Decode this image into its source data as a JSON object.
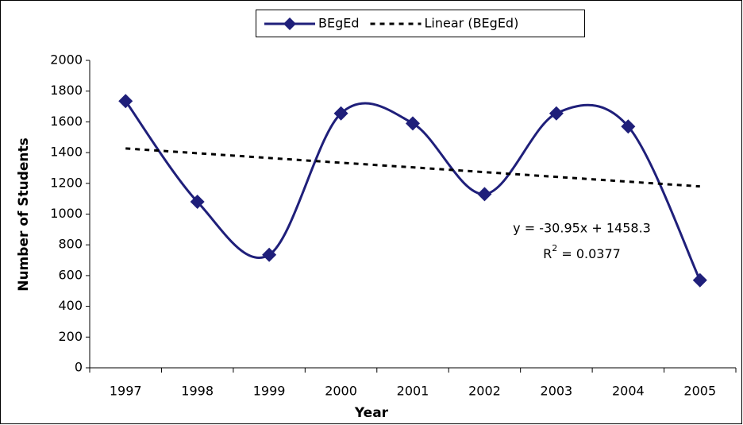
{
  "chart_data": {
    "type": "line",
    "categories": [
      "1997",
      "1998",
      "1999",
      "2000",
      "2001",
      "2002",
      "2003",
      "2004",
      "2005"
    ],
    "series": [
      {
        "name": "BEgEd",
        "color": "#1f1f7a",
        "smooth": true,
        "marker": "diamond",
        "values": [
          1735,
          1080,
          735,
          1655,
          1590,
          1130,
          1655,
          1570,
          570
        ]
      },
      {
        "name": "Linear (BEgEd)",
        "color": "#000000",
        "dashed": true,
        "values": [
          1427,
          1396,
          1365,
          1334,
          1304,
          1273,
          1242,
          1211,
          1180
        ]
      }
    ],
    "ylim": [
      0,
      2000
    ],
    "yticks": [
      0,
      200,
      400,
      600,
      800,
      1000,
      1200,
      1400,
      1600,
      1800,
      2000
    ],
    "x_label": "Year",
    "y_label": "Number of Students",
    "equation": "y = -30.95x + 1458.3",
    "r_squared": {
      "base": "R",
      "exponent": "2",
      "rest": " = 0.0377"
    },
    "grid": false,
    "legend": "top"
  }
}
